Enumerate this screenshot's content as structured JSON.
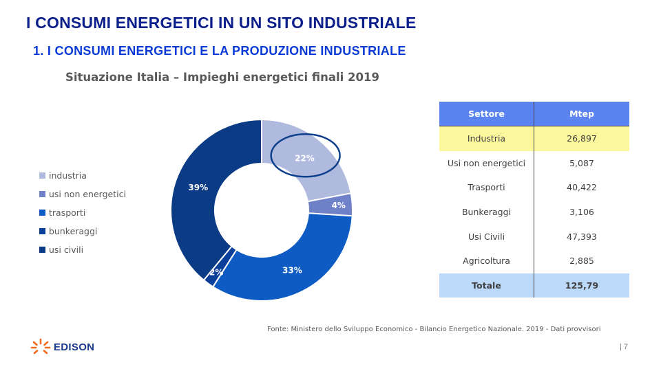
{
  "title": "I CONSUMI ENERGETICI IN UN SITO INDUSTRIALE",
  "subtitle": "1. I CONSUMI  ENERGETICI  E LA PRODUZIONE  INDUSTRIALE",
  "colors": {
    "title": "#0b1f8c",
    "subtitle": "#0b3bd6",
    "highlight_circle": "#0e3f8c"
  },
  "chart_data": {
    "type": "pie",
    "variant": "donut",
    "title": "Situazione  Italia – Impieghi energetici finali 2019",
    "legend_position": "left",
    "slices": [
      {
        "name": "industria",
        "value": 22,
        "label": "22%",
        "color": "#b0b9de"
      },
      {
        "name": "usi non energetici",
        "value": 4,
        "label": "4%",
        "color": "#6f82c8"
      },
      {
        "name": "trasporti",
        "value": 33,
        "label": "33%",
        "color": "#0e5bc4"
      },
      {
        "name": "bunkeraggi",
        "value": 2,
        "label": "2%",
        "color": "#0a3f9a"
      },
      {
        "name": "usi civili",
        "value": 39,
        "label": "39%",
        "color": "#0a3b84"
      }
    ],
    "highlighted_slice": "industria"
  },
  "table": {
    "headers": [
      "Settore",
      "Mtep"
    ],
    "rows": [
      {
        "sector": "Industria",
        "value": "26,897",
        "highlight": true
      },
      {
        "sector": "Usi non energetici",
        "value": "5,087"
      },
      {
        "sector": "Trasporti",
        "value": "40,422"
      },
      {
        "sector": "Bunkeraggi",
        "value": "3,106"
      },
      {
        "sector": "Usi Civili",
        "value": "47,393"
      },
      {
        "sector": "Agricoltura",
        "value": "2,885"
      }
    ],
    "total": {
      "sector": "Totale",
      "value": "125,79"
    }
  },
  "source": "Fonte:  Ministero dello Sviluppo Economico - Bilancio Energetico Nazionale. 2019 - Dati provvisori",
  "page_number": "| 7",
  "logo": {
    "text": "EDISON",
    "icon": "edison-logo-icon"
  }
}
